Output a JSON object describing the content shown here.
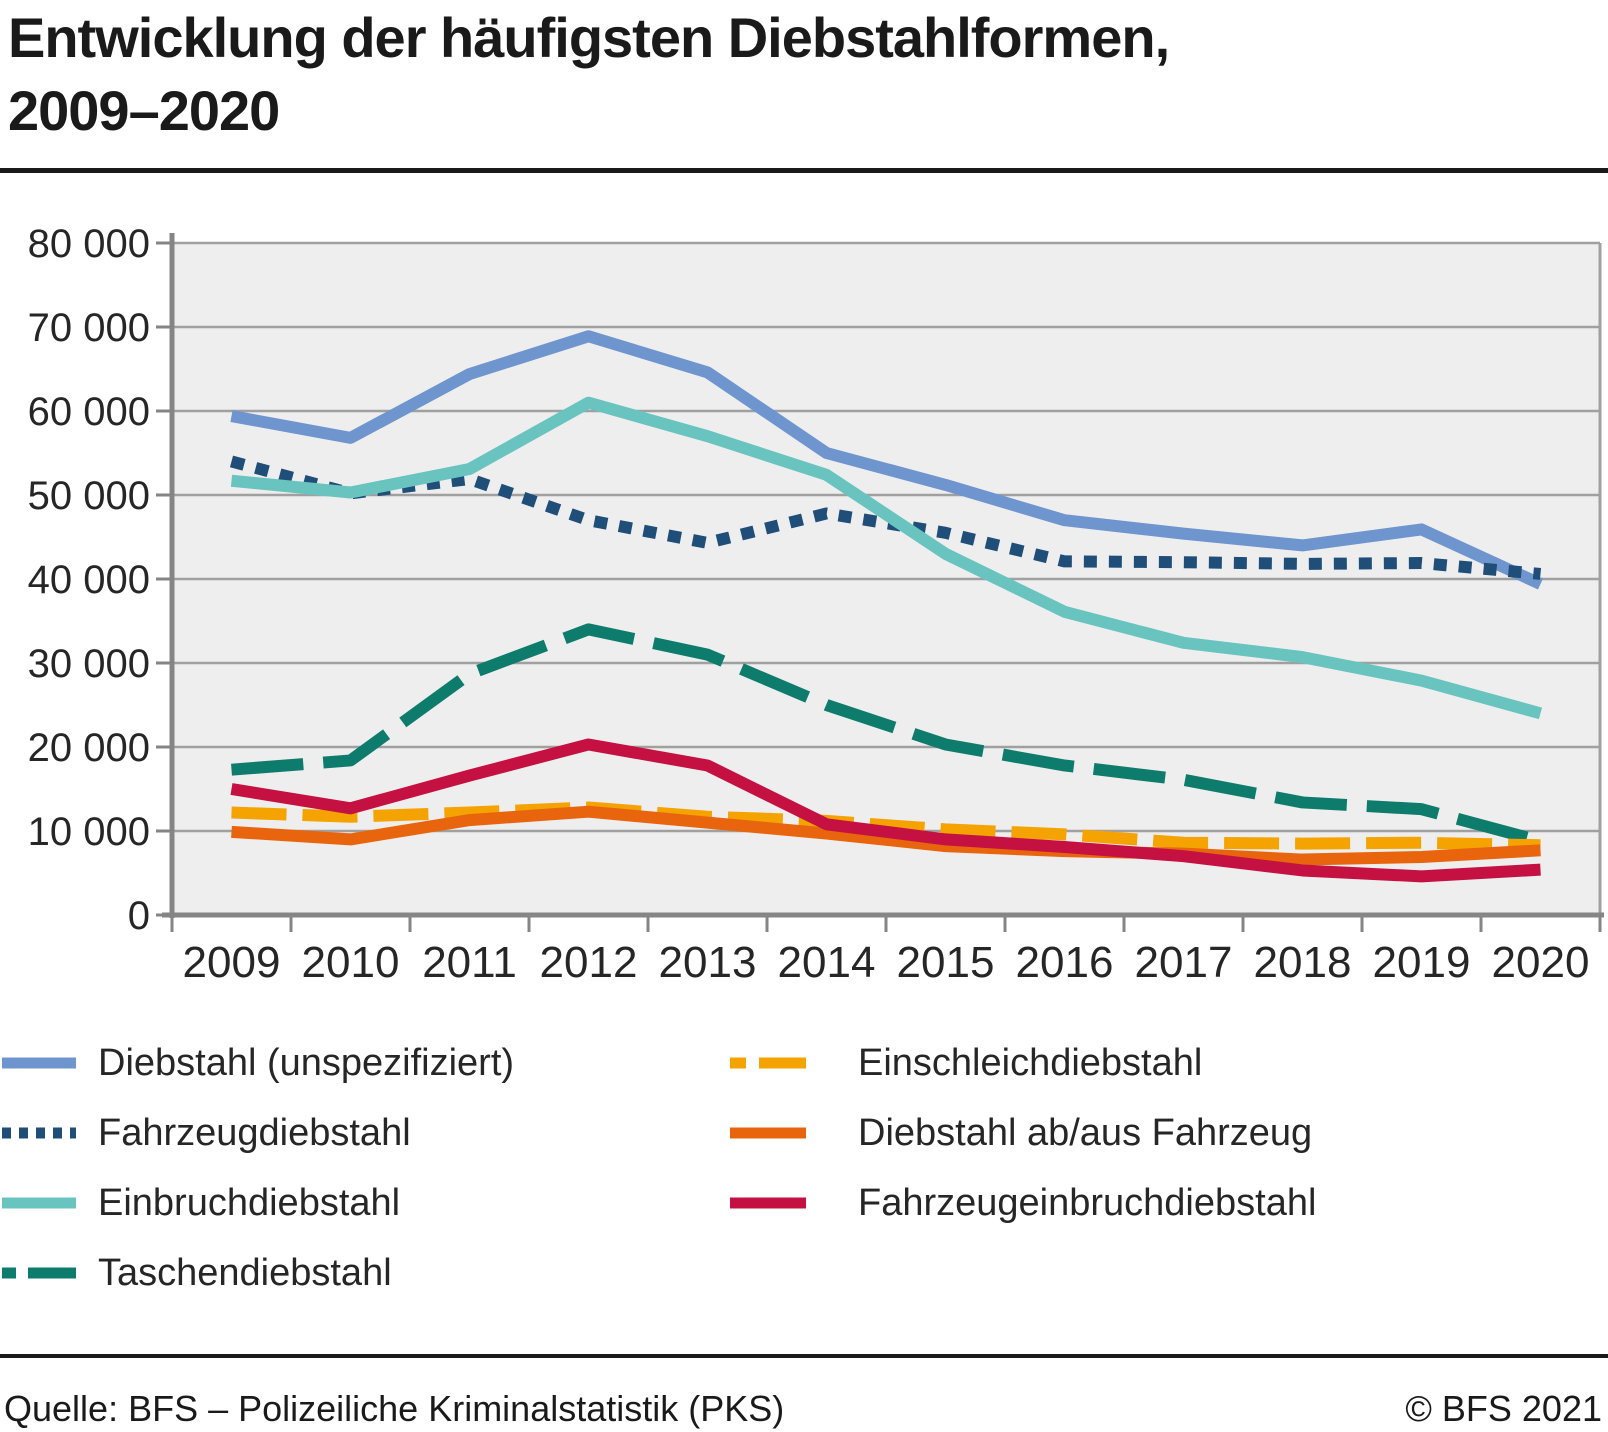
{
  "title": {
    "line1": "Entwicklung der häufigsten Diebstahlformen,",
    "line2": "2009–2020"
  },
  "chart_data": {
    "type": "line",
    "x": [
      2009,
      2010,
      2011,
      2012,
      2013,
      2014,
      2015,
      2016,
      2017,
      2018,
      2019,
      2020
    ],
    "xtick_labels": [
      "2009",
      "2010",
      "2011",
      "2012",
      "2013",
      "2014",
      "2015",
      "2016",
      "2017",
      "2018",
      "2019",
      "2020"
    ],
    "ylim": [
      0,
      80000
    ],
    "ytick_step": 10000,
    "ytick_labels": [
      "0",
      "10 000",
      "20 000",
      "30 000",
      "40 000",
      "50 000",
      "60 000",
      "70 000",
      "80 000"
    ],
    "grid": true,
    "legend_position": "bottom",
    "series": [
      {
        "name": "Diebstahl (unspezifiziert)",
        "color": "#6F95CF",
        "style": "solid",
        "values": [
          59400,
          56800,
          64400,
          68900,
          64600,
          55000,
          51200,
          47000,
          45400,
          44000,
          45900,
          39400
        ]
      },
      {
        "name": "Fahrzeugdiebstahl",
        "color": "#1F4E79",
        "style": "dotted",
        "values": [
          54000,
          50200,
          51900,
          47000,
          44300,
          47800,
          45500,
          42100,
          42000,
          41800,
          41900,
          40600
        ]
      },
      {
        "name": "Einbruchdiebstahl",
        "color": "#69C4C0",
        "style": "solid",
        "values": [
          51700,
          50300,
          53100,
          61000,
          57000,
          52400,
          43000,
          36100,
          32400,
          30700,
          27900,
          24000
        ]
      },
      {
        "name": "Taschendiebstahl",
        "color": "#0E7C6D",
        "style": "dashed-long",
        "values": [
          17300,
          18400,
          28700,
          34000,
          31000,
          25000,
          20300,
          17800,
          16100,
          13400,
          12600,
          8800
        ]
      },
      {
        "name": "Einschleichdiebstahl",
        "color": "#F5A300",
        "style": "dashed",
        "values": [
          12200,
          11700,
          12200,
          12800,
          11700,
          11200,
          10200,
          9600,
          8600,
          8500,
          8600,
          8300
        ]
      },
      {
        "name": "Diebstahl ab/aus Fahrzeug",
        "color": "#E8650D",
        "style": "solid",
        "values": [
          9900,
          9000,
          11300,
          12300,
          11000,
          9700,
          8200,
          7600,
          7300,
          6600,
          6900,
          7700
        ]
      },
      {
        "name": "Fahrzeugeinbruchdiebstahl",
        "color": "#C41142",
        "style": "solid",
        "values": [
          15000,
          12700,
          16600,
          20300,
          17800,
          10800,
          9000,
          8100,
          7000,
          5300,
          4600,
          5400
        ]
      }
    ],
    "plot_colors": {
      "background": "#EFEEEE",
      "grid": "#A0A0A0",
      "axis": "#858585",
      "label_text": "#262626"
    }
  },
  "legend": {
    "left_column_series": [
      0,
      1,
      2,
      3
    ],
    "right_column_series": [
      4,
      5,
      6
    ]
  },
  "footer": {
    "source": "Quelle: BFS – Polizeiliche Kriminalstatistik (PKS)",
    "copyright": "© BFS 2021"
  }
}
